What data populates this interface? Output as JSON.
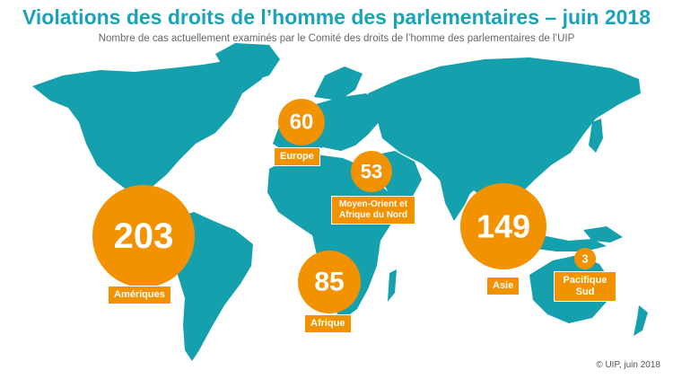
{
  "title": "Violations des droits de l’homme des parlementaires – juin 2018",
  "subtitle": "Nombre de cas actuellement examinés par le Comité des droits de l’homme des parlementaires de l’UIP",
  "regions": [
    {
      "id": "ameriques",
      "count": "203",
      "label": "Amériques"
    },
    {
      "id": "europe",
      "count": "60",
      "label": "Europe"
    },
    {
      "id": "moyen-orient",
      "count": "53",
      "label": "Moyen-Orient et Afrique du Nord"
    },
    {
      "id": "afrique",
      "count": "85",
      "label": "Afrique"
    },
    {
      "id": "asie",
      "count": "149",
      "label": "Asie"
    },
    {
      "id": "pacifique",
      "count": "3",
      "label": "Pacifique Sud"
    }
  ],
  "copyright": "© UIP, juin 2018",
  "colors": {
    "title": "#1aa3b4",
    "land": "#15a0ad",
    "bubble": "#f39200",
    "label_text": "#ffffff"
  }
}
